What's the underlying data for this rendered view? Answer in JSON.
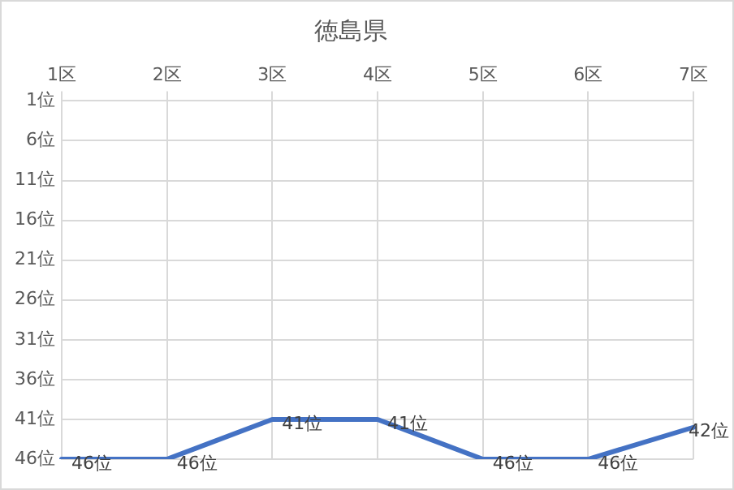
{
  "chart_data": {
    "type": "line",
    "title": "徳島県",
    "categories": [
      "1区",
      "2区",
      "3区",
      "4区",
      "5区",
      "6区",
      "7区"
    ],
    "series": [
      {
        "color": "#4472c4",
        "values": [
          46,
          46,
          41,
          41,
          46,
          46,
          42
        ],
        "value_labels": [
          "46位",
          "46位",
          "41位",
          "41位",
          "46位",
          "46位",
          "42位"
        ]
      }
    ],
    "ylim": [
      46,
      1
    ],
    "yticks": [
      {
        "value": 1,
        "label": "1位"
      },
      {
        "value": 6,
        "label": "6位"
      },
      {
        "value": 11,
        "label": "11位"
      },
      {
        "value": 16,
        "label": "16位"
      },
      {
        "value": 21,
        "label": "21位"
      },
      {
        "value": 26,
        "label": "26位"
      },
      {
        "value": 31,
        "label": "31位"
      },
      {
        "value": 36,
        "label": "36位"
      },
      {
        "value": 41,
        "label": "41位"
      },
      {
        "value": 46,
        "label": "46位"
      }
    ],
    "grid": true,
    "legend": false,
    "marker": "none",
    "line_style": "solid"
  }
}
